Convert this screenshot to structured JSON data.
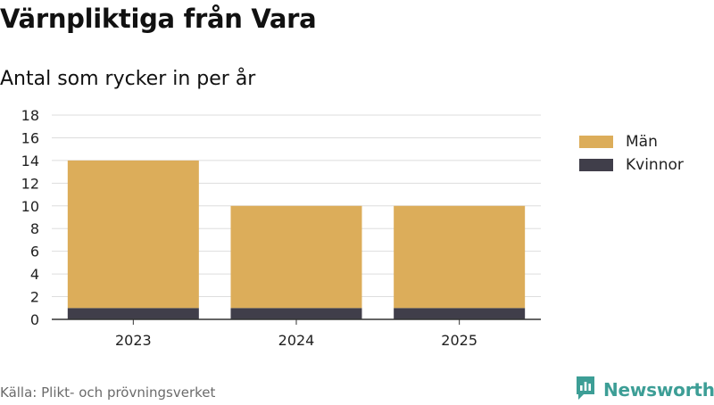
{
  "header": {
    "title": "Värnpliktiga från Vara",
    "subtitle": "Antal som rycker in per år"
  },
  "footer": {
    "source": "Källa: Plikt- och prövningsverket",
    "brand": "Newsworthy"
  },
  "colors": {
    "men": "#dcad5a",
    "women": "#403e4a",
    "grid": "#dddddd",
    "brand": "#3d9e96"
  },
  "icons": {
    "brand_logo": "newsworthy-logo-icon"
  },
  "chart_data": {
    "type": "bar",
    "stacked": true,
    "title": "Värnpliktiga från Vara",
    "subtitle": "Antal som rycker in per år",
    "categories": [
      "2023",
      "2024",
      "2025"
    ],
    "series": [
      {
        "name": "Kvinnor",
        "values": [
          1,
          1,
          1
        ]
      },
      {
        "name": "Män",
        "values": [
          13,
          9,
          9
        ]
      }
    ],
    "legend": [
      "Män",
      "Kvinnor"
    ],
    "ylim": [
      0,
      18
    ],
    "yticks": [
      "0",
      "2",
      "4",
      "6",
      "8",
      "10",
      "12",
      "14",
      "16",
      "18"
    ],
    "grid": true,
    "legend_position": "right"
  }
}
